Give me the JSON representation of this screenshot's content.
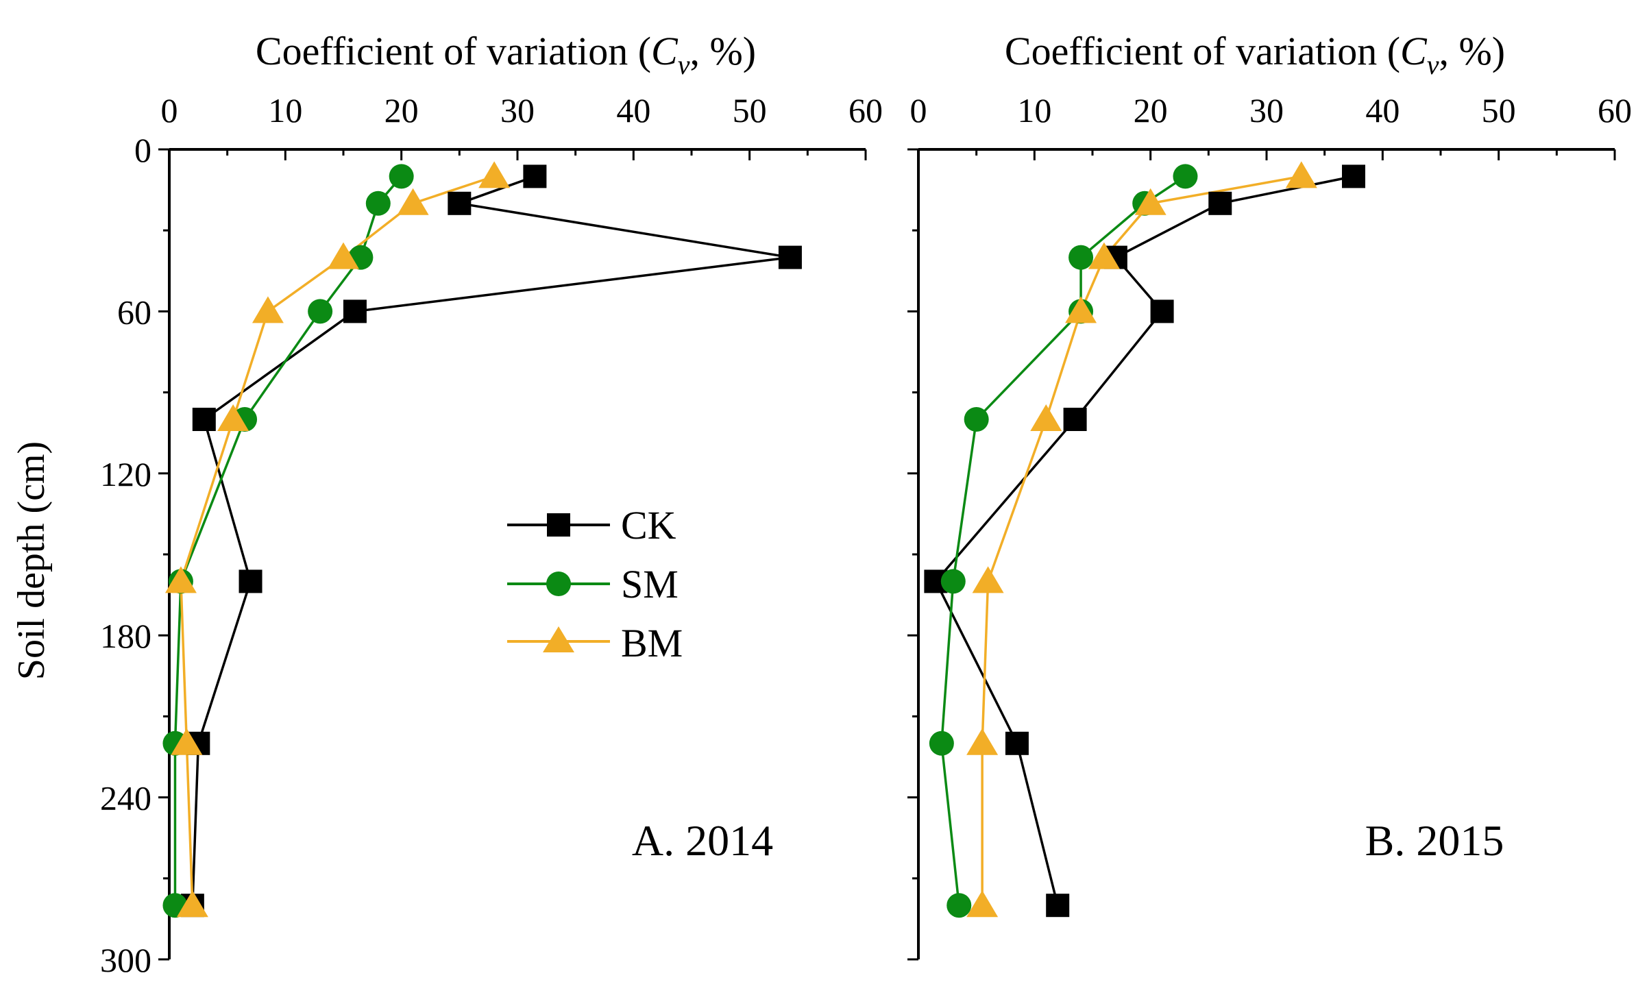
{
  "y_axis_label": "Soil depth (cm)",
  "legend": [
    {
      "name": "CK",
      "color": "#000000",
      "marker": "square"
    },
    {
      "name": "SM",
      "color": "#0b8a14",
      "marker": "circle"
    },
    {
      "name": "BM",
      "color": "#f2ae27",
      "marker": "triangle"
    }
  ],
  "chart_data": [
    {
      "type": "line",
      "title": "Coefficient of variation (Cv, %)",
      "xlabel": "Coefficient of variation (Cv, %)",
      "xlabel_parts": {
        "before": "Coefficient of variation (",
        "italic": "C",
        "sub": "v",
        "after": ", %)"
      },
      "ylabel": "Soil depth (cm)",
      "xlim": [
        0,
        60
      ],
      "ylim": [
        300,
        0
      ],
      "xticks": [
        0,
        10,
        20,
        30,
        40,
        50,
        60
      ],
      "yticks": [
        0,
        60,
        120,
        180,
        240,
        300
      ],
      "annotation": "A. 2014",
      "series": [
        {
          "name": "CK",
          "points": [
            [
              31.5,
              10
            ],
            [
              25,
              20
            ],
            [
              53.5,
              40
            ],
            [
              16,
              60
            ],
            [
              3,
              100
            ],
            [
              7,
              160
            ],
            [
              2.5,
              220
            ],
            [
              2,
              280
            ]
          ]
        },
        {
          "name": "SM",
          "points": [
            [
              20,
              10
            ],
            [
              18,
              20
            ],
            [
              16.5,
              40
            ],
            [
              13,
              60
            ],
            [
              6.5,
              100
            ],
            [
              1,
              160
            ],
            [
              0.5,
              220
            ],
            [
              0.5,
              280
            ]
          ]
        },
        {
          "name": "BM",
          "points": [
            [
              28,
              10
            ],
            [
              21,
              20
            ],
            [
              15,
              40
            ],
            [
              8.5,
              60
            ],
            [
              5.5,
              100
            ],
            [
              1,
              160
            ],
            [
              1.5,
              220
            ],
            [
              2,
              280
            ]
          ]
        }
      ]
    },
    {
      "type": "line",
      "title": "Coefficient of variation (Cv, %)",
      "xlabel": "Coefficient of variation (Cv, %)",
      "xlabel_parts": {
        "before": "Coefficient of variation (",
        "italic": "C",
        "sub": "v",
        "after": ", %)"
      },
      "ylabel": "Soil depth (cm)",
      "xlim": [
        0,
        60
      ],
      "ylim": [
        300,
        0
      ],
      "xticks": [
        0,
        10,
        20,
        30,
        40,
        50,
        60
      ],
      "yticks": [
        0,
        60,
        120,
        180,
        240,
        300
      ],
      "annotation": "B. 2015",
      "series": [
        {
          "name": "CK",
          "points": [
            [
              37.5,
              10
            ],
            [
              26,
              20
            ],
            [
              17,
              40
            ],
            [
              21,
              60
            ],
            [
              13.5,
              100
            ],
            [
              1.5,
              160
            ],
            [
              8.5,
              220
            ],
            [
              12,
              280
            ]
          ]
        },
        {
          "name": "SM",
          "points": [
            [
              23,
              10
            ],
            [
              19.5,
              20
            ],
            [
              14,
              40
            ],
            [
              14,
              60
            ],
            [
              5,
              100
            ],
            [
              3,
              160
            ],
            [
              2,
              220
            ],
            [
              3.5,
              280
            ]
          ]
        },
        {
          "name": "BM",
          "points": [
            [
              33,
              10
            ],
            [
              20,
              20
            ],
            [
              16,
              40
            ],
            [
              14,
              60
            ],
            [
              11,
              100
            ],
            [
              6,
              160
            ],
            [
              5.5,
              220
            ],
            [
              5.5,
              280
            ]
          ]
        }
      ]
    }
  ]
}
